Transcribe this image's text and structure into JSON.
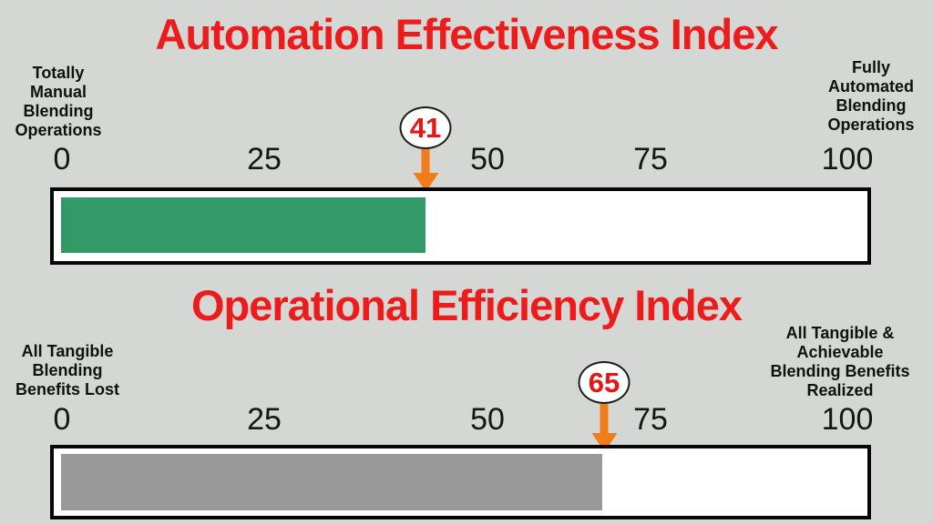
{
  "page": {
    "background_color": "#d5d7d4",
    "title_color": "#ed1c1c",
    "arrow_color": "#f07c1a",
    "marker_text_color": "#e41616"
  },
  "gauges": [
    {
      "title": "Automation Effectiveness Index",
      "left_label_lines": [
        "Totally",
        "Manual",
        "Blending",
        "Operations"
      ],
      "right_label_lines": [
        "Fully",
        "Automated",
        "Blending",
        "Operations"
      ],
      "ticks": [
        "0",
        "25",
        "50",
        "75",
        "100"
      ],
      "value": "41",
      "fill_color": "#339966"
    },
    {
      "title": "Operational Efficiency Index",
      "left_label_lines": [
        "All Tangible",
        "Blending",
        "Benefits Lost"
      ],
      "right_label_lines": [
        "All Tangible &",
        "Achievable",
        "Blending Benefits",
        "Realized"
      ],
      "ticks": [
        "0",
        "25",
        "50",
        "75",
        "100"
      ],
      "value": "65",
      "fill_color": "#999999"
    }
  ],
  "chart_data": [
    {
      "type": "bar",
      "orientation": "horizontal",
      "title": "Automation Effectiveness Index",
      "categories": [
        "Automation Effectiveness Index"
      ],
      "values": [
        41
      ],
      "xlim": [
        0,
        100
      ],
      "xticks": [
        0,
        25,
        50,
        75,
        100
      ],
      "min_label": "Totally Manual Blending Operations",
      "max_label": "Fully Automated Blending Operations",
      "annotation": "41",
      "bar_color": "#339966",
      "grid": false,
      "legend_position": "none"
    },
    {
      "type": "bar",
      "orientation": "horizontal",
      "title": "Operational Efficiency Index",
      "categories": [
        "Operational Efficiency Index"
      ],
      "values": [
        65
      ],
      "xlim": [
        0,
        100
      ],
      "xticks": [
        0,
        25,
        50,
        75,
        100
      ],
      "min_label": "All Tangible Blending Benefits Lost",
      "max_label": "All Tangible & Achievable Blending Benefits Realized",
      "annotation": "65",
      "bar_color": "#999999",
      "grid": false,
      "legend_position": "none"
    }
  ]
}
